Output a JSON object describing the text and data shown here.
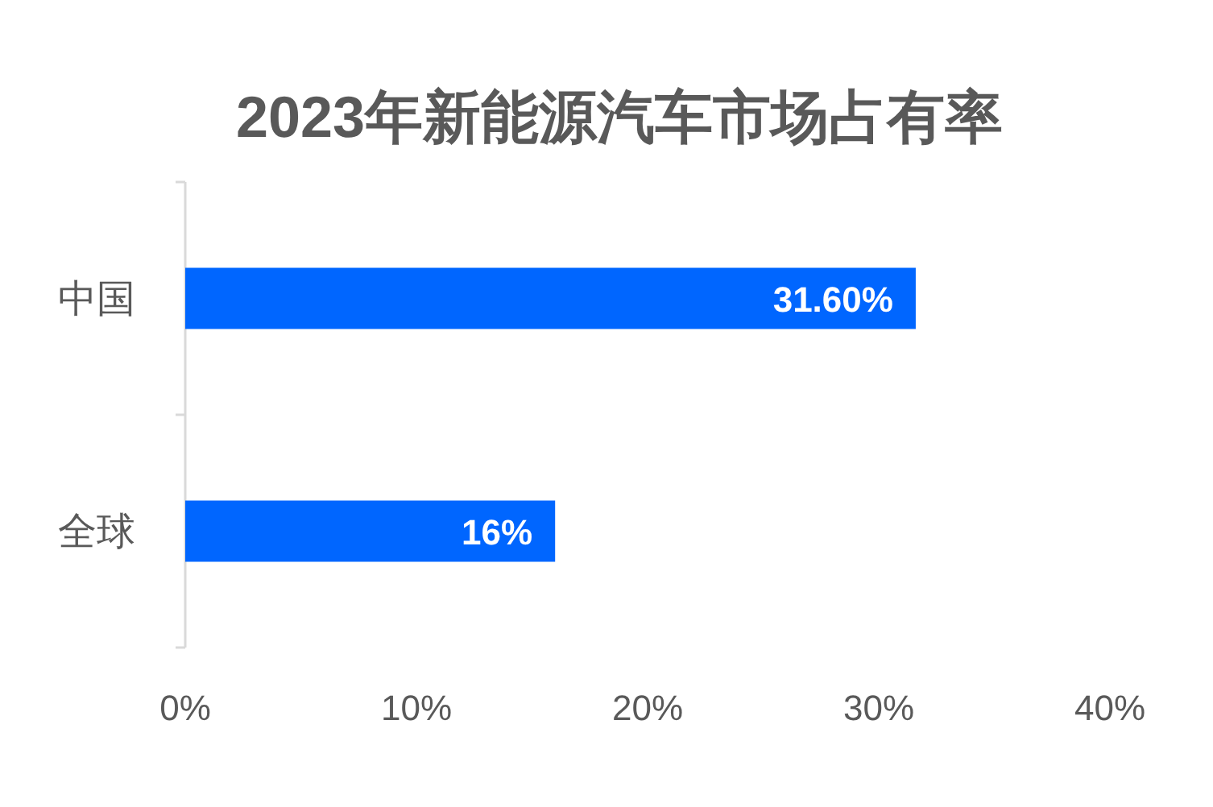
{
  "chart_data": {
    "type": "bar",
    "title": "2023年新能源汽车市场占有率",
    "orientation": "horizontal",
    "categories": [
      "中国",
      "全球"
    ],
    "values": [
      31.6,
      16
    ],
    "value_labels": [
      "31.60%",
      "16%"
    ],
    "color": "#0066ff",
    "xlim": [
      0,
      40
    ],
    "xticks": [
      {
        "value": 0,
        "label": "0%"
      },
      {
        "value": 10,
        "label": "10%"
      },
      {
        "value": 20,
        "label": "20%"
      },
      {
        "value": 30,
        "label": "30%"
      },
      {
        "value": 40,
        "label": "40%"
      }
    ]
  }
}
